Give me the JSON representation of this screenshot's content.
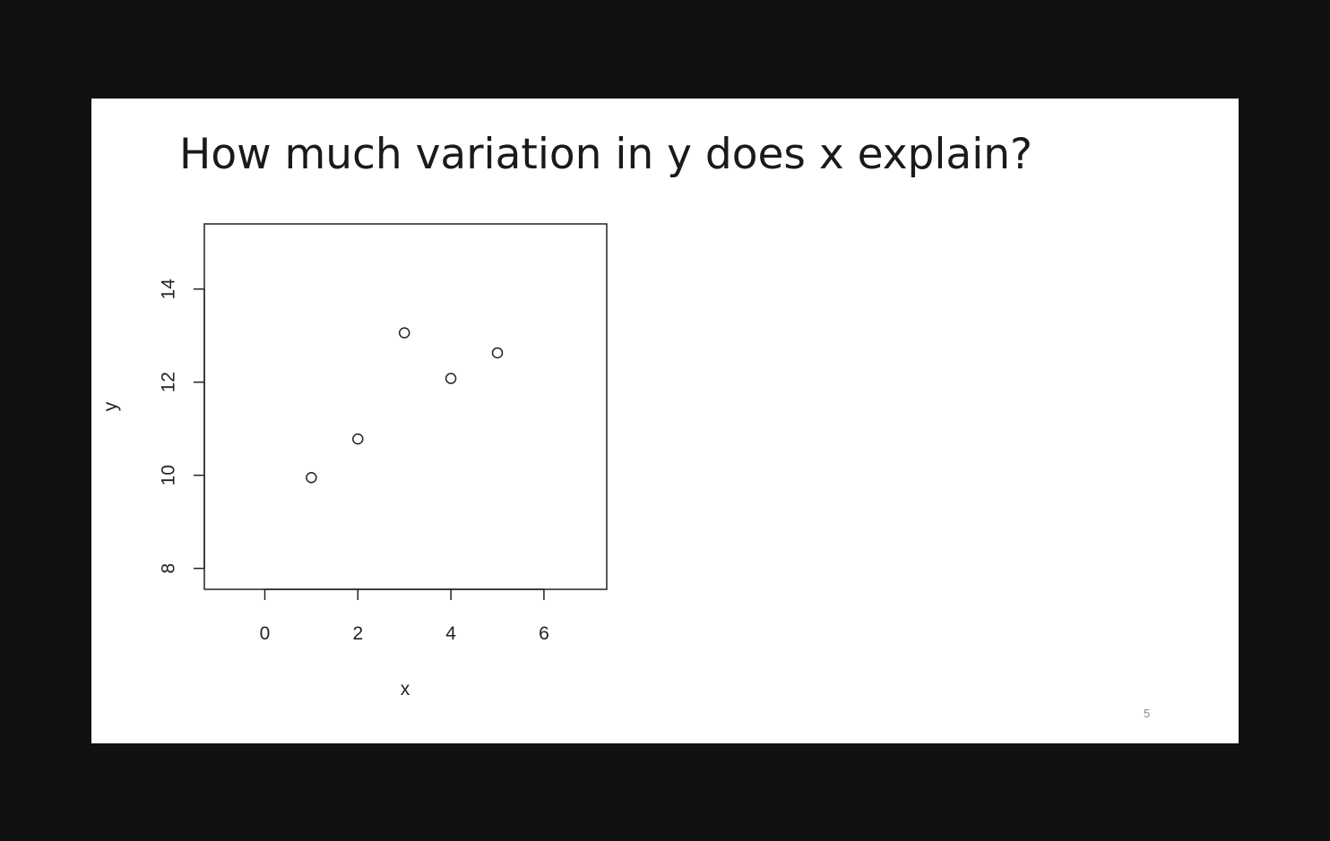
{
  "slide": {
    "title": "How much variation in y does x explain?",
    "page_number": "5"
  },
  "chart_data": {
    "type": "scatter",
    "x": [
      1,
      2,
      3,
      4,
      5
    ],
    "y": [
      9.95,
      10.78,
      13.06,
      12.08,
      12.63
    ],
    "xlabel": "x",
    "ylabel": "y",
    "xlim": [
      -1.3,
      7.35
    ],
    "ylim": [
      7.55,
      15.4
    ],
    "xticks": [
      0,
      2,
      4,
      6
    ],
    "yticks": [
      8,
      10,
      12,
      14
    ],
    "marker": "open-circle",
    "grid": false,
    "colors": {
      "points": "#222222",
      "axes": "#222222"
    }
  }
}
